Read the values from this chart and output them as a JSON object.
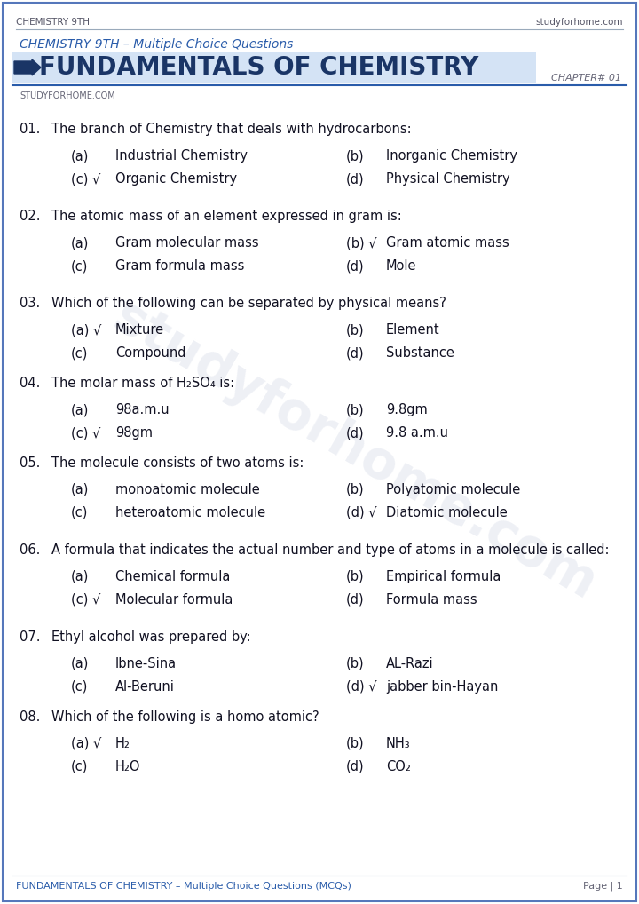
{
  "header_left": "CHEMISTRY 9TH",
  "header_right": "studyforhome.com",
  "subtitle": "CHEMISTRY 9TH – Multiple Choice Questions",
  "chapter": "CHAPTER# 01",
  "watermark": "studyforhome.com",
  "brand": "STUDYFORHOME.COM",
  "footer_left": "FUNDAMENTALS OF CHEMISTRY – Multiple Choice Questions (MCQs)",
  "footer_right": "Page | 1",
  "bg_color": "#ffffff",
  "blue_color": "#2a5caa",
  "dark_blue": "#1a3566",
  "light_blue_bg": "#d6e4f7",
  "header_text_color": "#555566",
  "body_text_color": "#111122",
  "watermark_color": "#c8cfe0",
  "footer_line_color": "#aabbcc",
  "questions": [
    {
      "num": "01.",
      "text": "The branch of Chemistry that deals with hydrocarbons:",
      "options": [
        {
          "label": "(a)",
          "check": false,
          "text": "Industrial Chemistry"
        },
        {
          "label": "(b)",
          "check": false,
          "text": "Inorganic Chemistry"
        },
        {
          "label": "(c)",
          "check": true,
          "text": "Organic Chemistry"
        },
        {
          "label": "(d)",
          "check": false,
          "text": "Physical Chemistry"
        }
      ]
    },
    {
      "num": "02.",
      "text": "The atomic mass of an element expressed in gram is:",
      "options": [
        {
          "label": "(a)",
          "check": false,
          "text": "Gram molecular mass"
        },
        {
          "label": "(b)",
          "check": true,
          "text": "Gram atomic mass"
        },
        {
          "label": "(c)",
          "check": false,
          "text": "Gram formula mass"
        },
        {
          "label": "(d)",
          "check": false,
          "text": "Mole"
        }
      ]
    },
    {
      "num": "03.",
      "text": "Which of the following can be separated by physical means?",
      "options": [
        {
          "label": "(a)",
          "check": true,
          "text": "Mixture"
        },
        {
          "label": "(b)",
          "check": false,
          "text": "Element"
        },
        {
          "label": "(c)",
          "check": false,
          "text": "Compound"
        },
        {
          "label": "(d)",
          "check": false,
          "text": "Substance"
        }
      ]
    },
    {
      "num": "04.",
      "text": "The molar mass of H₂SO₄ is:",
      "options": [
        {
          "label": "(a)",
          "check": false,
          "text": "98a.m.u"
        },
        {
          "label": "(b)",
          "check": false,
          "text": "9.8gm"
        },
        {
          "label": "(c)",
          "check": true,
          "text": "98gm"
        },
        {
          "label": "(d)",
          "check": false,
          "text": "9.8 a.m.u"
        }
      ]
    },
    {
      "num": "05.",
      "text": "The molecule consists of two atoms is:",
      "options": [
        {
          "label": "(a)",
          "check": false,
          "text": "monoatomic molecule"
        },
        {
          "label": "(b)",
          "check": false,
          "text": "Polyatomic molecule"
        },
        {
          "label": "(c)",
          "check": false,
          "text": "heteroatomic molecule"
        },
        {
          "label": "(d)",
          "check": true,
          "text": "Diatomic molecule"
        }
      ]
    },
    {
      "num": "06.",
      "text": "A formula that indicates the actual number and type of atoms in a molecule is called:",
      "options": [
        {
          "label": "(a)",
          "check": false,
          "text": "Chemical formula"
        },
        {
          "label": "(b)",
          "check": false,
          "text": "Empirical formula"
        },
        {
          "label": "(c)",
          "check": true,
          "text": "Molecular formula"
        },
        {
          "label": "(d)",
          "check": false,
          "text": "Formula mass"
        }
      ]
    },
    {
      "num": "07.",
      "text": "Ethyl alcohol was prepared by:",
      "options": [
        {
          "label": "(a)",
          "check": false,
          "text": "Ibne-Sina"
        },
        {
          "label": "(b)",
          "check": false,
          "text": "AL-Razi"
        },
        {
          "label": "(c)",
          "check": false,
          "text": "Al-Beruni"
        },
        {
          "label": "(d)",
          "check": true,
          "text": "jabber bin-Hayan"
        }
      ]
    },
    {
      "num": "08.",
      "text": "Which of the following is a homo atomic?",
      "options": [
        {
          "label": "(a)",
          "check": true,
          "text": "H₂"
        },
        {
          "label": "(b)",
          "check": false,
          "text": "NH₃"
        },
        {
          "label": "(c)",
          "check": false,
          "text": "H₂O"
        },
        {
          "label": "(d)",
          "check": false,
          "text": "CO₂"
        }
      ]
    }
  ]
}
